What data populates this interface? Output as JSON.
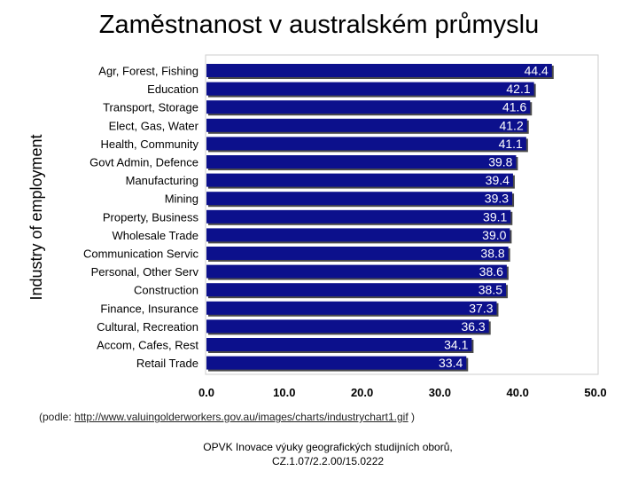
{
  "slide": {
    "title": "Zaměstnanost v australském průmyslu",
    "source_prefix": "(podle: ",
    "source_url": "http://www.valuingolderworkers.gov.au/images/charts/industrychart1.gif",
    "source_suffix": " )",
    "footer_line1": "OPVK Inovace výuky geografických studijních oborů,",
    "footer_line2": "CZ.1.07/2.2.00/15.0222"
  },
  "colors": {
    "bar": "#0c108c",
    "bar_shadow": "#4a4a4a",
    "bar_text": "#ffffff"
  },
  "chart_data": {
    "type": "bar",
    "orientation": "horizontal",
    "title": "",
    "xlabel": "",
    "ylabel": "Industry of employment",
    "xlim": [
      0,
      50
    ],
    "x_ticks": [
      "0.0",
      "10.0",
      "20.0",
      "30.0",
      "40.0",
      "50.0"
    ],
    "grid": false,
    "categories": [
      "Agr, Forest, Fishing",
      "Education",
      "Transport, Storage",
      "Elect, Gas, Water",
      "Health, Community",
      "Govt Admin, Defence",
      "Manufacturing",
      "Mining",
      "Property, Business",
      "Wholesale Trade",
      "Communication Servic",
      "Personal, Other Serv",
      "Construction",
      "Finance, Insurance",
      "Cultural, Recreation",
      "Accom, Cafes, Rest",
      "Retail Trade"
    ],
    "values": [
      44.4,
      42.1,
      41.6,
      41.2,
      41.1,
      39.8,
      39.4,
      39.3,
      39.1,
      39.0,
      38.8,
      38.6,
      38.5,
      37.3,
      36.3,
      34.1,
      33.4
    ],
    "value_labels": [
      "44.4",
      "42.1",
      "41.6",
      "41.2",
      "41.1",
      "39.8",
      "39.4",
      "39.3",
      "39.1",
      "39.0",
      "38.8",
      "38.6",
      "38.5",
      "37.3",
      "36.3",
      "34.1",
      "33.4"
    ]
  }
}
